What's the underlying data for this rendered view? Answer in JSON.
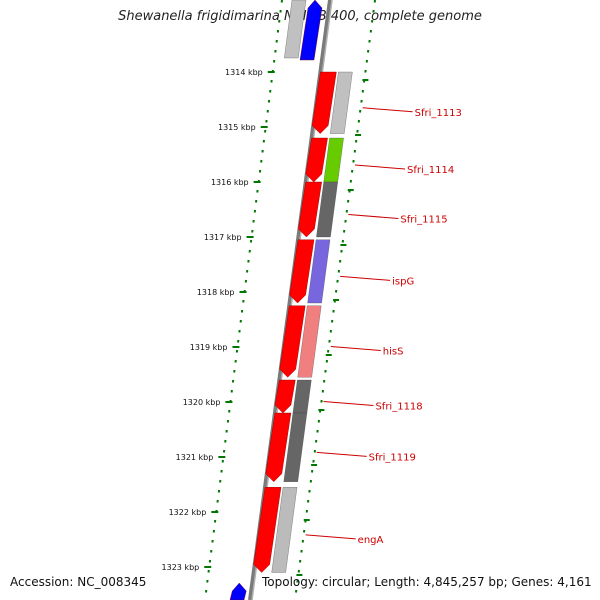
{
  "title": "Shewanella frigidimarina NCIMB 400, complete genome",
  "accession": "Accession: NC_008345",
  "topology": "Topology: circular; Length: 4,845,257 bp; Genes: 4,161",
  "colors": {
    "backbone": "#7a7a7a",
    "cds": "#ff0000",
    "ticks": "#007700",
    "label": "#cc0000"
  },
  "scale": [
    {
      "label": "1314 kbp",
      "kbp": 1314
    },
    {
      "label": "1315 kbp",
      "kbp": 1315
    },
    {
      "label": "1316 kbp",
      "kbp": 1316
    },
    {
      "label": "1317 kbp",
      "kbp": 1317
    },
    {
      "label": "1318 kbp",
      "kbp": 1318
    },
    {
      "label": "1319 kbp",
      "kbp": 1319
    },
    {
      "label": "1320 kbp",
      "kbp": 1320
    },
    {
      "label": "1321 kbp",
      "kbp": 1321
    },
    {
      "label": "1322 kbp",
      "kbp": 1322
    },
    {
      "label": "1323 kbp",
      "kbp": 1323
    }
  ],
  "genes": [
    {
      "name": "Sfri_1113",
      "start_kbp": 1314.0,
      "end_kbp": 1315.12,
      "category_color": "#c0c0c0"
    },
    {
      "name": "Sfri_1114",
      "start_kbp": 1315.2,
      "end_kbp": 1316.0,
      "category_color": "#66cc00"
    },
    {
      "name": "Sfri_1115",
      "start_kbp": 1316.0,
      "end_kbp": 1317.0,
      "category_color": "#666666"
    },
    {
      "name": "ispG",
      "start_kbp": 1317.05,
      "end_kbp": 1318.2,
      "category_color": "#7766dd"
    },
    {
      "name": "hisS",
      "start_kbp": 1318.25,
      "end_kbp": 1319.55,
      "category_color": "#f08080"
    },
    {
      "name": "Sfri_1118",
      "start_kbp": 1319.6,
      "end_kbp": 1320.2,
      "category_color": "#666666"
    },
    {
      "name": "Sfri_1119",
      "start_kbp": 1320.2,
      "end_kbp": 1321.45,
      "category_color": "#666666"
    },
    {
      "name": "engA",
      "start_kbp": 1321.55,
      "end_kbp": 1323.1,
      "category_color": "#bbbbbb"
    }
  ],
  "partial_top": {
    "category_color": "#c0c0c0",
    "extra_color": "#0000ff"
  },
  "partial_bottom": {
    "category_color": "#0000ff"
  }
}
